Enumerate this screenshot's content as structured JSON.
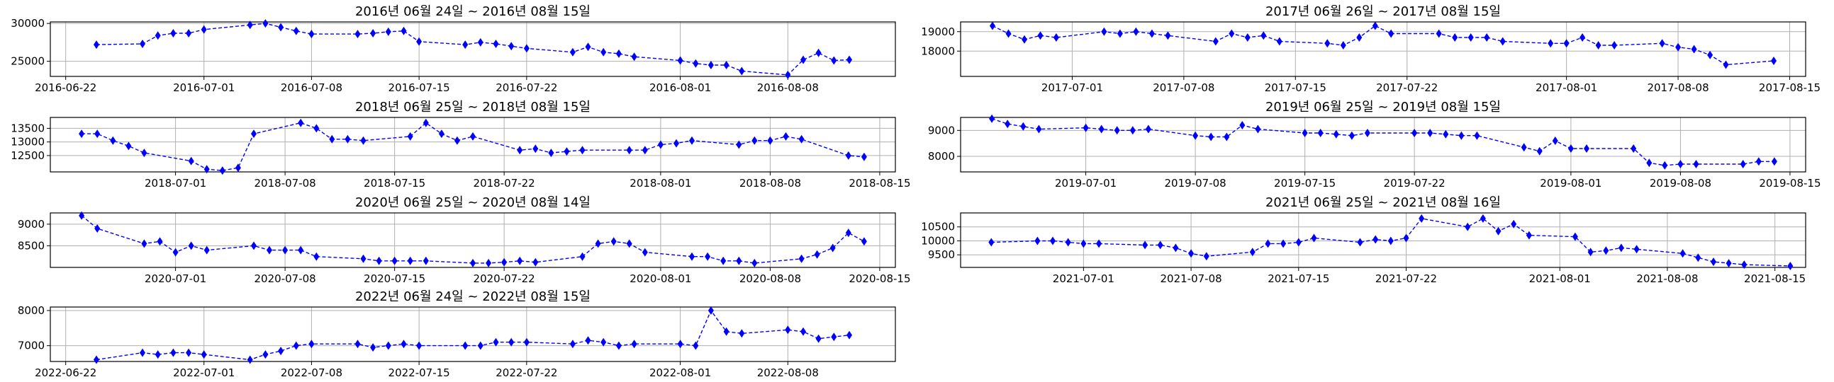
{
  "chart_data": [
    {
      "type": "line",
      "title": "2016년 06월 24일 ~ 2016년 08월 15일",
      "xlim": [
        "2016-06-21",
        "2016-08-15"
      ],
      "ylim": [
        23000,
        30200
      ],
      "yticks": [
        25000,
        30000
      ],
      "ytick_labels": [
        "25000",
        "30000"
      ],
      "xticks": [
        "2016-06-22",
        "2016-07-01",
        "2016-07-08",
        "2016-07-15",
        "2016-07-22",
        "2016-08-01",
        "2016-08-08"
      ],
      "xtick_labels": [
        "2016-06-22",
        "2016-07-01",
        "2016-07-08",
        "2016-07-15",
        "2016-07-22",
        "2016-08-01",
        "2016-08-08"
      ],
      "grid": true,
      "series": [
        {
          "color": "#0000ff",
          "marker": "diamond",
          "linestyle": "dashed",
          "x": [
            "2016-06-24",
            "2016-06-27",
            "2016-06-28",
            "2016-06-29",
            "2016-06-30",
            "2016-07-01",
            "2016-07-04",
            "2016-07-05",
            "2016-07-06",
            "2016-07-07",
            "2016-07-08",
            "2016-07-11",
            "2016-07-12",
            "2016-07-13",
            "2016-07-14",
            "2016-07-15",
            "2016-07-18",
            "2016-07-19",
            "2016-07-20",
            "2016-07-21",
            "2016-07-22",
            "2016-07-25",
            "2016-07-26",
            "2016-07-27",
            "2016-07-28",
            "2016-07-29",
            "2016-08-01",
            "2016-08-02",
            "2016-08-03",
            "2016-08-04",
            "2016-08-05",
            "2016-08-08",
            "2016-08-09",
            "2016-08-10",
            "2016-08-11",
            "2016-08-12"
          ],
          "y": [
            27200,
            27300,
            28400,
            28700,
            28700,
            29200,
            29800,
            30000,
            29500,
            29000,
            28600,
            28600,
            28700,
            28900,
            29000,
            27600,
            27200,
            27500,
            27300,
            27000,
            26700,
            26200,
            26900,
            26200,
            26000,
            25600,
            25100,
            24700,
            24500,
            24500,
            23700,
            23200,
            25200,
            26100,
            25100,
            25200
          ]
        }
      ]
    },
    {
      "type": "line",
      "title": "2017년 06월 26일 ~ 2017년 08월 15일",
      "xlim": [
        "2017-06-24",
        "2017-08-16"
      ],
      "ylim": [
        16700,
        19500
      ],
      "yticks": [
        18000,
        19000
      ],
      "ytick_labels": [
        "18000",
        "19000"
      ],
      "xticks": [
        "2017-07-01",
        "2017-07-08",
        "2017-07-15",
        "2017-07-22",
        "2017-08-01",
        "2017-08-08",
        "2017-08-15"
      ],
      "xtick_labels": [
        "2017-07-01",
        "2017-07-08",
        "2017-07-15",
        "2017-07-22",
        "2017-08-01",
        "2017-08-08",
        "2017-08-15"
      ],
      "grid": true,
      "series": [
        {
          "color": "#0000ff",
          "marker": "diamond",
          "linestyle": "dashed",
          "x": [
            "2017-06-26",
            "2017-06-27",
            "2017-06-28",
            "2017-06-29",
            "2017-06-30",
            "2017-07-03",
            "2017-07-04",
            "2017-07-05",
            "2017-07-06",
            "2017-07-07",
            "2017-07-10",
            "2017-07-11",
            "2017-07-12",
            "2017-07-13",
            "2017-07-14",
            "2017-07-17",
            "2017-07-18",
            "2017-07-19",
            "2017-07-20",
            "2017-07-21",
            "2017-07-24",
            "2017-07-25",
            "2017-07-26",
            "2017-07-27",
            "2017-07-28",
            "2017-07-31",
            "2017-08-01",
            "2017-08-02",
            "2017-08-03",
            "2017-08-04",
            "2017-08-07",
            "2017-08-08",
            "2017-08-09",
            "2017-08-10",
            "2017-08-11",
            "2017-08-14"
          ],
          "y": [
            19300,
            18900,
            18600,
            18800,
            18700,
            19000,
            18900,
            19000,
            18900,
            18800,
            18500,
            18900,
            18700,
            18800,
            18500,
            18400,
            18300,
            18700,
            19300,
            18900,
            18900,
            18700,
            18700,
            18700,
            18500,
            18400,
            18400,
            18700,
            18300,
            18300,
            18400,
            18200,
            18100,
            17800,
            17300,
            17500
          ]
        }
      ]
    },
    {
      "type": "line",
      "title": "2018년 06월 25일 ~ 2018년 08월 15일",
      "xlim": [
        "2018-06-23",
        "2018-08-16"
      ],
      "ylim": [
        11900,
        13900
      ],
      "yticks": [
        12500,
        13000,
        13500
      ],
      "ytick_labels": [
        "12500",
        "13000",
        "13500"
      ],
      "xticks": [
        "2018-07-01",
        "2018-07-08",
        "2018-07-15",
        "2018-07-22",
        "2018-08-01",
        "2018-08-08",
        "2018-08-15"
      ],
      "xtick_labels": [
        "2018-07-01",
        "2018-07-08",
        "2018-07-15",
        "2018-07-22",
        "2018-08-01",
        "2018-08-08",
        "2018-08-15"
      ],
      "grid": true,
      "series": [
        {
          "color": "#0000ff",
          "marker": "diamond",
          "linestyle": "dashed",
          "x": [
            "2018-06-25",
            "2018-06-26",
            "2018-06-27",
            "2018-06-28",
            "2018-06-29",
            "2018-07-02",
            "2018-07-03",
            "2018-07-04",
            "2018-07-05",
            "2018-07-06",
            "2018-07-09",
            "2018-07-10",
            "2018-07-11",
            "2018-07-12",
            "2018-07-13",
            "2018-07-16",
            "2018-07-17",
            "2018-07-18",
            "2018-07-19",
            "2018-07-20",
            "2018-07-23",
            "2018-07-24",
            "2018-07-25",
            "2018-07-26",
            "2018-07-27",
            "2018-07-30",
            "2018-07-31",
            "2018-08-01",
            "2018-08-02",
            "2018-08-03",
            "2018-08-06",
            "2018-08-07",
            "2018-08-08",
            "2018-08-09",
            "2018-08-10",
            "2018-08-13",
            "2018-08-14"
          ],
          "y": [
            13300,
            13300,
            13050,
            12850,
            12600,
            12300,
            12000,
            11950,
            12050,
            13300,
            13700,
            13500,
            13100,
            13100,
            13050,
            13200,
            13700,
            13300,
            13050,
            13200,
            12700,
            12750,
            12600,
            12650,
            12700,
            12700,
            12700,
            12900,
            12950,
            13050,
            12900,
            13050,
            13050,
            13200,
            13100,
            12500,
            12450
          ]
        }
      ]
    },
    {
      "type": "line",
      "title": "2019년 06월 25일 ~ 2019년 08월 15일",
      "xlim": [
        "2019-06-23",
        "2019-08-16"
      ],
      "ylim": [
        7400,
        9500
      ],
      "yticks": [
        8000,
        9000
      ],
      "ytick_labels": [
        "8000",
        "9000"
      ],
      "xticks": [
        "2019-07-01",
        "2019-07-08",
        "2019-07-15",
        "2019-07-22",
        "2019-08-01",
        "2019-08-08",
        "2019-08-15"
      ],
      "xtick_labels": [
        "2019-07-01",
        "2019-07-08",
        "2019-07-15",
        "2019-07-22",
        "2019-08-01",
        "2019-08-08",
        "2019-08-15"
      ],
      "grid": true,
      "series": [
        {
          "color": "#0000ff",
          "marker": "diamond",
          "linestyle": "dashed",
          "x": [
            "2019-06-25",
            "2019-06-26",
            "2019-06-27",
            "2019-06-28",
            "2019-07-01",
            "2019-07-02",
            "2019-07-03",
            "2019-07-04",
            "2019-07-05",
            "2019-07-08",
            "2019-07-09",
            "2019-07-10",
            "2019-07-11",
            "2019-07-12",
            "2019-07-15",
            "2019-07-16",
            "2019-07-17",
            "2019-07-18",
            "2019-07-19",
            "2019-07-22",
            "2019-07-23",
            "2019-07-24",
            "2019-07-25",
            "2019-07-26",
            "2019-07-29",
            "2019-07-30",
            "2019-07-31",
            "2019-08-01",
            "2019-08-02",
            "2019-08-05",
            "2019-08-06",
            "2019-08-07",
            "2019-08-08",
            "2019-08-09",
            "2019-08-12",
            "2019-08-13",
            "2019-08-14"
          ],
          "y": [
            9450,
            9250,
            9150,
            9050,
            9100,
            9050,
            9000,
            9000,
            9050,
            8800,
            8750,
            8750,
            9200,
            9050,
            8900,
            8900,
            8850,
            8800,
            8900,
            8900,
            8900,
            8850,
            8800,
            8800,
            8350,
            8200,
            8600,
            8300,
            8300,
            8300,
            7750,
            7650,
            7700,
            7700,
            7700,
            7800,
            7800
          ]
        }
      ]
    },
    {
      "type": "line",
      "title": "2020년 06월 25일 ~ 2020년 08월 14일",
      "xlim": [
        "2020-06-23",
        "2020-08-16"
      ],
      "ylim": [
        8000,
        9260
      ],
      "yticks": [
        8500,
        9000
      ],
      "ytick_labels": [
        "8500",
        "9000"
      ],
      "xticks": [
        "2020-07-01",
        "2020-07-08",
        "2020-07-15",
        "2020-07-22",
        "2020-08-01",
        "2020-08-08",
        "2020-08-15"
      ],
      "xtick_labels": [
        "2020-07-01",
        "2020-07-08",
        "2020-07-15",
        "2020-07-22",
        "2020-08-01",
        "2020-08-08",
        "2020-08-15"
      ],
      "grid": true,
      "series": [
        {
          "color": "#0000ff",
          "marker": "diamond",
          "linestyle": "dashed",
          "x": [
            "2020-06-25",
            "2020-06-26",
            "2020-06-29",
            "2020-06-30",
            "2020-07-01",
            "2020-07-02",
            "2020-07-03",
            "2020-07-06",
            "2020-07-07",
            "2020-07-08",
            "2020-07-09",
            "2020-07-10",
            "2020-07-13",
            "2020-07-14",
            "2020-07-15",
            "2020-07-16",
            "2020-07-17",
            "2020-07-20",
            "2020-07-21",
            "2020-07-22",
            "2020-07-23",
            "2020-07-24",
            "2020-07-27",
            "2020-07-28",
            "2020-07-29",
            "2020-07-30",
            "2020-07-31",
            "2020-08-03",
            "2020-08-04",
            "2020-08-05",
            "2020-08-06",
            "2020-08-07",
            "2020-08-10",
            "2020-08-11",
            "2020-08-12",
            "2020-08-13",
            "2020-08-14"
          ],
          "y": [
            9200,
            8900,
            8550,
            8600,
            8350,
            8500,
            8400,
            8500,
            8400,
            8400,
            8400,
            8250,
            8200,
            8150,
            8150,
            8150,
            8150,
            8100,
            8100,
            8120,
            8150,
            8120,
            8250,
            8550,
            8600,
            8550,
            8350,
            8250,
            8250,
            8150,
            8150,
            8100,
            8200,
            8300,
            8450,
            8800,
            8600
          ]
        }
      ]
    },
    {
      "type": "line",
      "title": "2021년 06월 25일 ~ 2021년 08월 16일",
      "xlim": [
        "2021-06-23",
        "2021-08-17"
      ],
      "ylim": [
        9050,
        11000
      ],
      "yticks": [
        9500,
        10000,
        10500
      ],
      "ytick_labels": [
        "9500",
        "10000",
        "10500"
      ],
      "xticks": [
        "2021-07-01",
        "2021-07-08",
        "2021-07-15",
        "2021-07-22",
        "2021-08-01",
        "2021-08-08",
        "2021-08-15"
      ],
      "xtick_labels": [
        "2021-07-01",
        "2021-07-08",
        "2021-07-15",
        "2021-07-22",
        "2021-08-01",
        "2021-08-08",
        "2021-08-15"
      ],
      "grid": true,
      "series": [
        {
          "color": "#0000ff",
          "marker": "diamond",
          "linestyle": "dashed",
          "x": [
            "2021-06-25",
            "2021-06-28",
            "2021-06-29",
            "2021-06-30",
            "2021-07-01",
            "2021-07-02",
            "2021-07-05",
            "2021-07-06",
            "2021-07-07",
            "2021-07-08",
            "2021-07-09",
            "2021-07-12",
            "2021-07-13",
            "2021-07-14",
            "2021-07-15",
            "2021-07-16",
            "2021-07-19",
            "2021-07-20",
            "2021-07-21",
            "2021-07-22",
            "2021-07-23",
            "2021-07-26",
            "2021-07-27",
            "2021-07-28",
            "2021-07-29",
            "2021-07-30",
            "2021-08-02",
            "2021-08-03",
            "2021-08-04",
            "2021-08-05",
            "2021-08-06",
            "2021-08-09",
            "2021-08-10",
            "2021-08-11",
            "2021-08-12",
            "2021-08-13",
            "2021-08-16"
          ],
          "y": [
            9950,
            10000,
            10000,
            9950,
            9900,
            9900,
            9850,
            9850,
            9750,
            9550,
            9450,
            9600,
            9900,
            9900,
            9950,
            10100,
            9950,
            10050,
            10000,
            10100,
            10800,
            10500,
            10800,
            10350,
            10600,
            10200,
            10150,
            9600,
            9650,
            9750,
            9700,
            9550,
            9400,
            9250,
            9200,
            9150,
            9100
          ]
        }
      ]
    },
    {
      "type": "line",
      "title": "2022년 06월 24일 ~ 2022년 08월 15일",
      "xlim": [
        "2022-06-21",
        "2022-08-15"
      ],
      "ylim": [
        6550,
        8100
      ],
      "yticks": [
        7000,
        8000
      ],
      "ytick_labels": [
        "7000",
        "8000"
      ],
      "xticks": [
        "2022-06-22",
        "2022-07-01",
        "2022-07-08",
        "2022-07-15",
        "2022-07-22",
        "2022-08-01",
        "2022-08-08"
      ],
      "xtick_labels": [
        "2022-06-22",
        "2022-07-01",
        "2022-07-08",
        "2022-07-15",
        "2022-07-22",
        "2022-08-01",
        "2022-08-08"
      ],
      "grid": true,
      "series": [
        {
          "color": "#0000ff",
          "marker": "diamond",
          "linestyle": "dashed",
          "x": [
            "2022-06-24",
            "2022-06-27",
            "2022-06-28",
            "2022-06-29",
            "2022-06-30",
            "2022-07-01",
            "2022-07-04",
            "2022-07-05",
            "2022-07-06",
            "2022-07-07",
            "2022-07-08",
            "2022-07-11",
            "2022-07-12",
            "2022-07-13",
            "2022-07-14",
            "2022-07-15",
            "2022-07-18",
            "2022-07-19",
            "2022-07-20",
            "2022-07-21",
            "2022-07-22",
            "2022-07-25",
            "2022-07-26",
            "2022-07-27",
            "2022-07-28",
            "2022-07-29",
            "2022-08-01",
            "2022-08-02",
            "2022-08-03",
            "2022-08-04",
            "2022-08-05",
            "2022-08-08",
            "2022-08-09",
            "2022-08-10",
            "2022-08-11",
            "2022-08-12"
          ],
          "y": [
            6600,
            6800,
            6750,
            6800,
            6800,
            6750,
            6600,
            6750,
            6850,
            7000,
            7050,
            7050,
            6950,
            7000,
            7050,
            7000,
            7000,
            7000,
            7100,
            7100,
            7100,
            7050,
            7150,
            7100,
            7000,
            7050,
            7050,
            7000,
            8000,
            7400,
            7350,
            7450,
            7400,
            7200,
            7250,
            7300
          ]
        }
      ]
    }
  ]
}
